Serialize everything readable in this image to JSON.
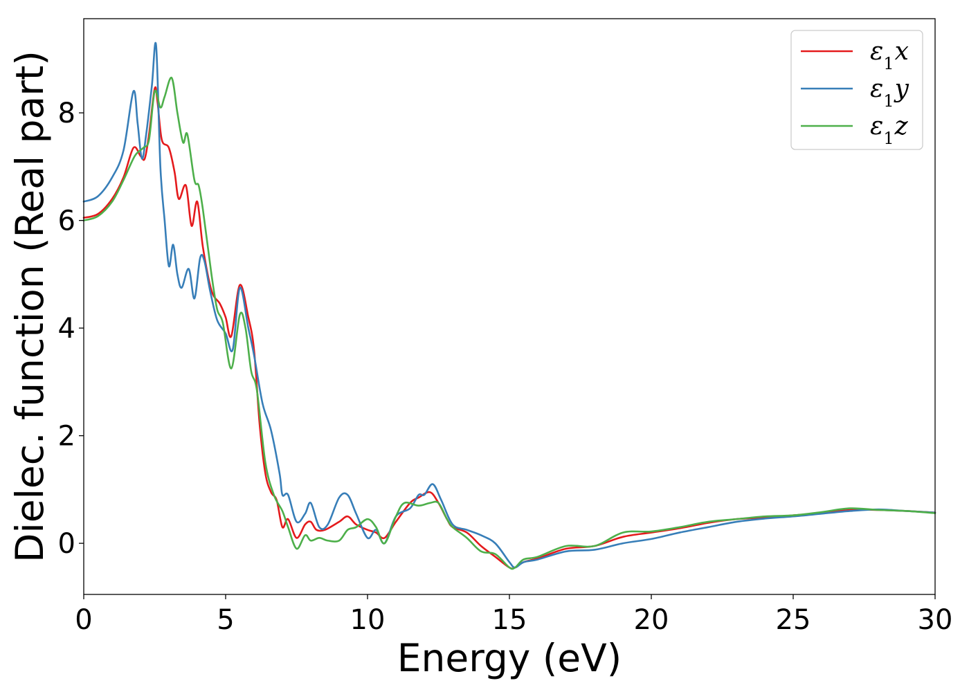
{
  "chart_data": {
    "type": "line",
    "xlabel": "Energy (eV)",
    "ylabel": "Dielec. function (Real part)",
    "xlim": [
      0,
      30
    ],
    "ylim": [
      -0.95,
      9.75
    ],
    "xticks": [
      0,
      5,
      10,
      15,
      20,
      25,
      30
    ],
    "yticks": [
      0,
      2,
      4,
      6,
      8
    ],
    "grid": false,
    "legend_position": "top-right",
    "series": [
      {
        "name": "ε₁x",
        "legend": {
          "base": "ε",
          "sub": "1",
          "var": "x"
        },
        "color": "#e41a1c",
        "x": [
          0,
          0.5,
          1.0,
          1.4,
          1.75,
          2.0,
          2.15,
          2.3,
          2.5,
          2.6,
          2.75,
          3.0,
          3.2,
          3.35,
          3.6,
          3.8,
          4.0,
          4.2,
          4.5,
          4.8,
          5.0,
          5.2,
          5.5,
          5.8,
          6.0,
          6.2,
          6.4,
          6.6,
          6.8,
          7.0,
          7.2,
          7.5,
          7.8,
          8.0,
          8.2,
          8.5,
          9.0,
          9.3,
          9.6,
          10.0,
          10.3,
          10.6,
          11.0,
          11.5,
          11.8,
          12.2,
          12.5,
          12.8,
          13.0,
          13.5,
          14.0,
          14.5,
          15.0,
          15.2,
          15.5,
          16.0,
          17.0,
          18.0,
          19.0,
          20.0,
          21.0,
          22.0,
          23.0,
          24.0,
          25.0,
          26.0,
          27.0,
          28.0,
          29.0,
          30.0
        ],
        "values": [
          6.05,
          6.12,
          6.4,
          6.8,
          7.35,
          7.2,
          7.15,
          7.6,
          8.45,
          8.2,
          7.5,
          7.35,
          6.9,
          6.4,
          6.65,
          5.9,
          6.35,
          5.5,
          4.7,
          4.45,
          4.2,
          3.85,
          4.8,
          4.2,
          3.6,
          2.2,
          1.3,
          0.95,
          0.8,
          0.3,
          0.45,
          0.1,
          0.35,
          0.4,
          0.25,
          0.25,
          0.4,
          0.5,
          0.35,
          0.25,
          0.2,
          0.1,
          0.4,
          0.75,
          0.85,
          0.95,
          0.75,
          0.45,
          0.3,
          0.2,
          -0.05,
          -0.25,
          -0.45,
          -0.45,
          -0.35,
          -0.28,
          -0.1,
          -0.05,
          0.12,
          0.2,
          0.28,
          0.38,
          0.45,
          0.48,
          0.52,
          0.56,
          0.62,
          0.62,
          0.6,
          0.57
        ]
      },
      {
        "name": "ε₁y",
        "legend": {
          "base": "ε",
          "sub": "1",
          "var": "y"
        },
        "color": "#377eb8",
        "x": [
          0,
          0.5,
          1.0,
          1.4,
          1.75,
          1.9,
          2.05,
          2.2,
          2.4,
          2.55,
          2.7,
          2.85,
          3.0,
          3.15,
          3.3,
          3.45,
          3.7,
          3.9,
          4.1,
          4.25,
          4.45,
          4.7,
          5.0,
          5.25,
          5.5,
          5.8,
          6.0,
          6.3,
          6.6,
          6.9,
          7.0,
          7.2,
          7.5,
          7.8,
          8.0,
          8.3,
          8.6,
          9.0,
          9.3,
          9.6,
          10.0,
          10.3,
          10.6,
          11.0,
          11.5,
          11.8,
          12.0,
          12.3,
          12.6,
          13.0,
          13.5,
          14.0,
          14.5,
          15.0,
          15.2,
          15.5,
          16.0,
          17.0,
          18.0,
          19.0,
          20.0,
          21.0,
          22.0,
          23.0,
          24.0,
          25.0,
          26.0,
          27.0,
          28.0,
          29.0,
          30.0
        ],
        "values": [
          6.35,
          6.45,
          6.8,
          7.3,
          8.4,
          7.8,
          7.15,
          7.6,
          8.5,
          9.25,
          7.0,
          6.0,
          5.15,
          5.55,
          5.0,
          4.75,
          5.1,
          4.55,
          5.3,
          5.25,
          4.7,
          4.15,
          3.9,
          3.6,
          4.75,
          4.0,
          3.5,
          2.6,
          2.1,
          1.3,
          0.9,
          0.9,
          0.4,
          0.55,
          0.75,
          0.3,
          0.35,
          0.85,
          0.9,
          0.55,
          0.1,
          0.25,
          0.0,
          0.5,
          0.65,
          0.9,
          0.9,
          1.1,
          0.8,
          0.35,
          0.25,
          0.15,
          0.0,
          -0.35,
          -0.45,
          -0.35,
          -0.3,
          -0.15,
          -0.12,
          0.0,
          0.08,
          0.2,
          0.3,
          0.4,
          0.46,
          0.5,
          0.55,
          0.6,
          0.63,
          0.6,
          0.57
        ]
      },
      {
        "name": "ε₁z",
        "legend": {
          "base": "ε",
          "sub": "1",
          "var": "z"
        },
        "color": "#4daf4a",
        "x": [
          0,
          0.5,
          1.0,
          1.4,
          1.8,
          2.1,
          2.3,
          2.5,
          2.7,
          2.85,
          3.1,
          3.3,
          3.5,
          3.65,
          3.9,
          4.05,
          4.2,
          4.5,
          4.7,
          4.9,
          5.2,
          5.5,
          5.7,
          5.9,
          6.1,
          6.4,
          6.7,
          7.0,
          7.2,
          7.5,
          7.8,
          8.0,
          8.3,
          8.6,
          9.0,
          9.3,
          9.6,
          10.0,
          10.3,
          10.6,
          11.0,
          11.3,
          11.8,
          12.2,
          12.5,
          12.8,
          13.0,
          13.5,
          14.0,
          14.5,
          15.0,
          15.2,
          15.5,
          16.0,
          17.0,
          18.0,
          19.0,
          20.0,
          21.0,
          22.0,
          23.0,
          24.0,
          25.0,
          26.0,
          27.0,
          28.0,
          29.0,
          30.0
        ],
        "values": [
          6.0,
          6.08,
          6.35,
          6.75,
          7.2,
          7.35,
          7.5,
          8.4,
          8.1,
          8.3,
          8.65,
          8.0,
          7.45,
          7.6,
          6.75,
          6.65,
          6.2,
          5.0,
          4.35,
          4.1,
          3.25,
          4.25,
          4.0,
          3.2,
          2.85,
          1.5,
          0.9,
          0.6,
          0.3,
          -0.1,
          0.15,
          0.05,
          0.1,
          0.05,
          0.05,
          0.25,
          0.3,
          0.45,
          0.3,
          0.0,
          0.5,
          0.75,
          0.7,
          0.75,
          0.75,
          0.45,
          0.3,
          0.1,
          -0.15,
          -0.2,
          -0.45,
          -0.45,
          -0.3,
          -0.25,
          -0.05,
          -0.05,
          0.2,
          0.22,
          0.3,
          0.4,
          0.45,
          0.5,
          0.52,
          0.58,
          0.65,
          0.62,
          0.6,
          0.56
        ]
      }
    ]
  }
}
